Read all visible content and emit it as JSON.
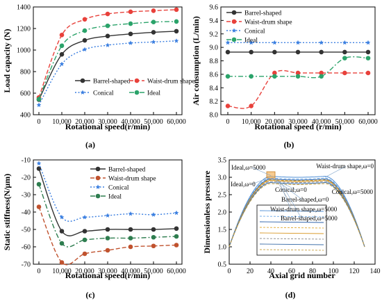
{
  "chart_data": [
    {
      "panel": "a",
      "type": "line",
      "caption": "(a)",
      "xlabel": "Rotational speed(r/min)",
      "ylabel": "Load capacity (N)",
      "categories": [
        "0",
        "10,000",
        "20,000",
        "30,000",
        "40,000",
        "50,000",
        "60,000"
      ],
      "xlim": [
        0,
        60000
      ],
      "ylim": [
        400,
        1400
      ],
      "yticks": [
        400,
        600,
        800,
        1000,
        1200,
        1400
      ],
      "legend": "bottom-right",
      "series": [
        {
          "name": "Barrel-shaped",
          "color": "#333333",
          "marker": "circle",
          "dash": "solid",
          "x": [
            0,
            10000,
            20000,
            30000,
            40000,
            50000,
            60000
          ],
          "values": [
            540,
            960,
            1090,
            1130,
            1150,
            1165,
            1175
          ]
        },
        {
          "name": "Waist-drum shape",
          "color": "#e8413b",
          "marker": "circle",
          "dash": "dashed",
          "x": [
            0,
            10000,
            20000,
            30000,
            40000,
            50000,
            60000
          ],
          "values": [
            560,
            1140,
            1285,
            1335,
            1355,
            1365,
            1375
          ]
        },
        {
          "name": "Conical",
          "color": "#3b7fe0",
          "marker": "star",
          "dash": "dotted",
          "x": [
            0,
            10000,
            20000,
            30000,
            40000,
            50000,
            60000
          ],
          "values": [
            490,
            870,
            1005,
            1045,
            1065,
            1075,
            1085
          ]
        },
        {
          "name": "Ideal",
          "color": "#2ba36a",
          "marker": "circle",
          "dash": "dashdot",
          "x": [
            0,
            10000,
            20000,
            30000,
            40000,
            50000,
            60000
          ],
          "values": [
            545,
            1040,
            1180,
            1225,
            1245,
            1260,
            1265
          ]
        }
      ]
    },
    {
      "panel": "b",
      "type": "line",
      "caption": "(b)",
      "xlabel": "Rotational speed (r/min)",
      "ylabel": "Air consumption (L/min)",
      "categories": [
        "0",
        "10,000",
        "20,000",
        "30,000",
        "40,000",
        "50,000",
        "60,000"
      ],
      "xlim": [
        0,
        60000
      ],
      "ylim": [
        8.0,
        9.6
      ],
      "yticks": [
        "8.0",
        "8.2",
        "8.4",
        "8.6",
        "8.8",
        "9.0",
        "9.2",
        "9.4",
        "9.6"
      ],
      "legend": "top-left",
      "series": [
        {
          "name": "Barrel-shaped",
          "color": "#333333",
          "marker": "circle",
          "dash": "solid",
          "x": [
            0,
            10000,
            20000,
            30000,
            40000,
            50000,
            60000
          ],
          "values": [
            8.93,
            8.93,
            8.93,
            8.93,
            8.93,
            8.93,
            8.93
          ]
        },
        {
          "name": "Waist-drum shape",
          "color": "#e8413b",
          "marker": "circle",
          "dash": "dashed",
          "x": [
            0,
            10000,
            20000,
            30000,
            40000,
            50000,
            60000
          ],
          "values": [
            8.13,
            8.13,
            8.62,
            8.62,
            8.62,
            8.62,
            8.62
          ]
        },
        {
          "name": "Conical",
          "color": "#3b7fe0",
          "marker": "star",
          "dash": "dotted",
          "x": [
            0,
            10000,
            20000,
            30000,
            40000,
            50000,
            60000
          ],
          "values": [
            9.07,
            9.07,
            9.07,
            9.07,
            9.07,
            9.07,
            9.07
          ]
        },
        {
          "name": "Ideal",
          "color": "#2ba36a",
          "marker": "circle",
          "dash": "dashdot",
          "x": [
            0,
            10000,
            20000,
            30000,
            40000,
            50000,
            60000
          ],
          "values": [
            8.57,
            8.57,
            8.57,
            8.57,
            8.57,
            8.84,
            8.84
          ]
        }
      ]
    },
    {
      "panel": "c",
      "type": "line",
      "caption": "(c)",
      "xlabel": "Rotational speed(r/min)",
      "ylabel": "Static stiffness(N/μm)",
      "categories": [
        "0",
        "10,000",
        "20,000",
        "30,000",
        "40,000",
        "50,000",
        "60,000"
      ],
      "xlim": [
        0,
        60000
      ],
      "ylim": [
        -70,
        -10
      ],
      "yticks": [
        -70,
        -60,
        -50,
        -40,
        -30,
        -20,
        -10
      ],
      "legend": "top-right",
      "series": [
        {
          "name": "Barrel-shaped",
          "color": "#333333",
          "marker": "circle",
          "dash": "solid",
          "x": [
            0,
            10000,
            20000,
            30000,
            40000,
            50000,
            60000
          ],
          "values": [
            -15,
            -51,
            -51,
            -50,
            -50,
            -50,
            -49.5
          ]
        },
        {
          "name": "Waist-drum shape",
          "color": "#c0522e",
          "marker": "circle",
          "dash": "dashed",
          "x": [
            0,
            10000,
            20000,
            30000,
            40000,
            50000,
            60000
          ],
          "values": [
            -37,
            -69,
            -64,
            -62,
            -60,
            -59.5,
            -59
          ]
        },
        {
          "name": "Conical",
          "color": "#3b7fe0",
          "marker": "star",
          "dash": "dotted",
          "x": [
            0,
            10000,
            20000,
            30000,
            40000,
            50000,
            60000
          ],
          "values": [
            -12,
            -43,
            -43,
            -42,
            -41,
            -41.5,
            -40.5
          ]
        },
        {
          "name": "Ideal",
          "color": "#2e7d4f",
          "marker": "circle",
          "dash": "dashdot",
          "x": [
            0,
            10000,
            20000,
            30000,
            40000,
            50000,
            60000
          ],
          "values": [
            -24,
            -58,
            -56,
            -55,
            -55,
            -54.5,
            -54
          ]
        }
      ]
    },
    {
      "panel": "d",
      "type": "line",
      "caption": "(d)",
      "xlabel": "Axial grid number",
      "ylabel": "Dimensionless pressure",
      "xticks": [
        0,
        20,
        40,
        60,
        80,
        100,
        120,
        140
      ],
      "xlim": [
        0,
        140
      ],
      "ylim": [
        0.5,
        3.5
      ],
      "yticks": [
        "0.5",
        "1.0",
        "1.5",
        "2.0",
        "2.5",
        "3.0",
        "3.5"
      ],
      "series": [
        {
          "name": "Ideal,ω=5000",
          "color": "#4f8fd6",
          "plateau": 3.03
        },
        {
          "name": "Ideal,ω=0",
          "color": "#6aa8e8",
          "plateau": 2.98
        },
        {
          "name": "Waist-drum shape,ω=0",
          "color": "#2a5fa8",
          "plateau": 2.95
        },
        {
          "name": "Conical,ω=5000",
          "color": "#e0a52c",
          "plateau": 2.93
        },
        {
          "name": "Conical,ω=0",
          "color": "#d99a2a",
          "plateau": 2.91
        },
        {
          "name": "Barrel-shaped,ω=0",
          "color": "#8a8a8a",
          "plateau": 2.88
        },
        {
          "name": "Waist-drum shape,ω=5000",
          "color": "#3c6ea8",
          "plateau": 2.85
        },
        {
          "name": "Barrel-shaped,ω=5000",
          "color": "#c8a040",
          "plateau": 2.82
        }
      ],
      "annotations": [
        "Ideal,ω=5000",
        "Waist-drum shape,ω=0",
        "Ideal,ω=0",
        "Conical,ω=5000",
        "Conical,ω=0",
        "Barrel-shaped,ω=0",
        "Waist-drum shape,ω=5000",
        "Barrel-shaped,ω=5000"
      ]
    }
  ]
}
